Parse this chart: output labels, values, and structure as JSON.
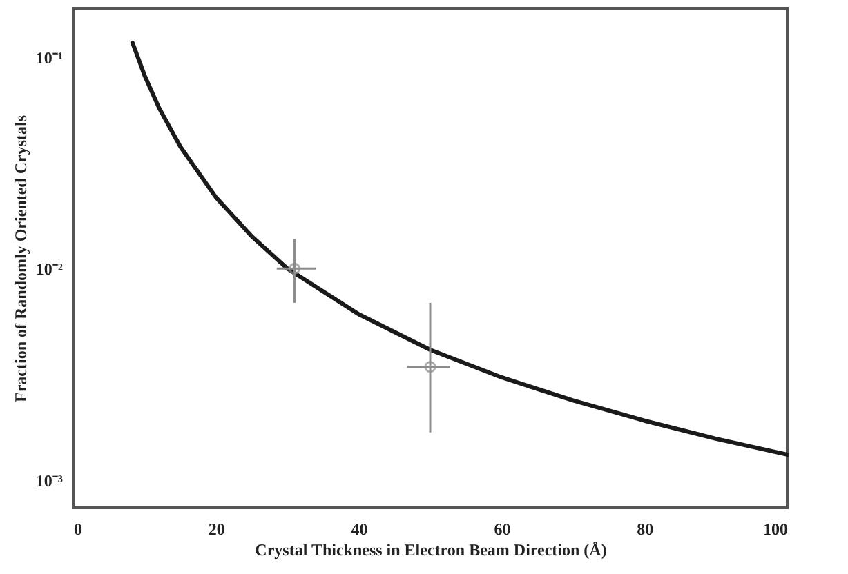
{
  "chart_data": {
    "type": "line",
    "xlabel": "Crystal Thickness in Electron Beam Direction (Å)",
    "ylabel": "Fraction of Randomly Oriented Crystals",
    "log": "y",
    "xlim": [
      0,
      100
    ],
    "xticks": [
      0,
      20,
      40,
      60,
      80,
      100
    ],
    "ylim": [
      0.00074,
      0.17
    ],
    "yticks": [
      {
        "value": 0.1,
        "label": "10⁻¹"
      },
      {
        "value": 0.01,
        "label": "10⁻²"
      },
      {
        "value": 0.001,
        "label": "10⁻³"
      }
    ],
    "grid": false,
    "series": [
      {
        "color": "#1a1a1a",
        "marker": "none",
        "line_style": "solid",
        "x": [
          8.3,
          10,
          12,
          15,
          20,
          25,
          30,
          40,
          50,
          60,
          70,
          80,
          90,
          100
        ],
        "values": [
          0.117,
          0.0818,
          0.0577,
          0.0377,
          0.0217,
          0.0142,
          0.01,
          0.00608,
          0.00413,
          0.00306,
          0.00238,
          0.00191,
          0.00157,
          0.00132
        ]
      },
      {
        "type": "scatter",
        "color": "#8c8c8c",
        "marker": "circle",
        "x": [
          31.0,
          50.0
        ],
        "values": [
          0.01,
          0.00343
        ],
        "errors": [
          [
            0.00689,
            0.0138
          ],
          [
            0.00168,
            0.00689
          ]
        ],
        "xerrors": [
          [
            28.5,
            34.0
          ],
          [
            46.8,
            52.8
          ]
        ]
      }
    ]
  }
}
